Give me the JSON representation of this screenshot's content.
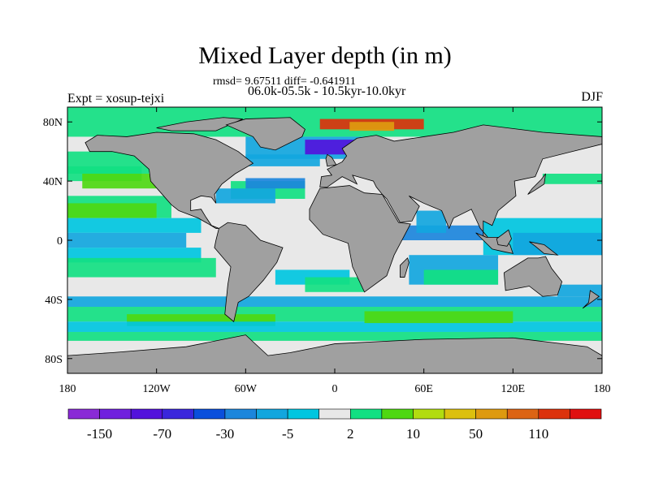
{
  "title": "Mixed Layer depth (in m)",
  "stats": "rmsd= 9.67511 diff= -0.641911",
  "period": "06.0k-05.5k - 10.5kyr-10.0kyr",
  "experiment": "Expt = xosup-tejxi",
  "season": "DJF",
  "chart_data": {
    "type": "heatmap",
    "title": "Mixed Layer depth (in m)",
    "projection": "cylindrical equidistant",
    "lat_ticks": [
      "80N",
      "40N",
      "0",
      "40S",
      "80S"
    ],
    "lat_values": [
      80,
      40,
      0,
      -40,
      -80
    ],
    "lon_ticks": [
      "180",
      "120W",
      "60W",
      "0",
      "60E",
      "120E",
      "180"
    ],
    "lon_values": [
      -180,
      -120,
      -60,
      0,
      60,
      120,
      180
    ],
    "colorbar": {
      "labels": [
        "-150",
        "-70",
        "-30",
        "-5",
        "2",
        "10",
        "50",
        "110"
      ],
      "colors": [
        "#8a2ad6",
        "#7020de",
        "#5312dc",
        "#3a26dc",
        "#0a4fdc",
        "#1c86dc",
        "#12a6de",
        "#00c6e0",
        "#e8e8e8",
        "#12e082",
        "#4ed812",
        "#b2dc10",
        "#dcc00e",
        "#de9a10",
        "#dc6414",
        "#dc320c",
        "#e01010"
      ]
    },
    "land_color": "#a0a0a0"
  }
}
